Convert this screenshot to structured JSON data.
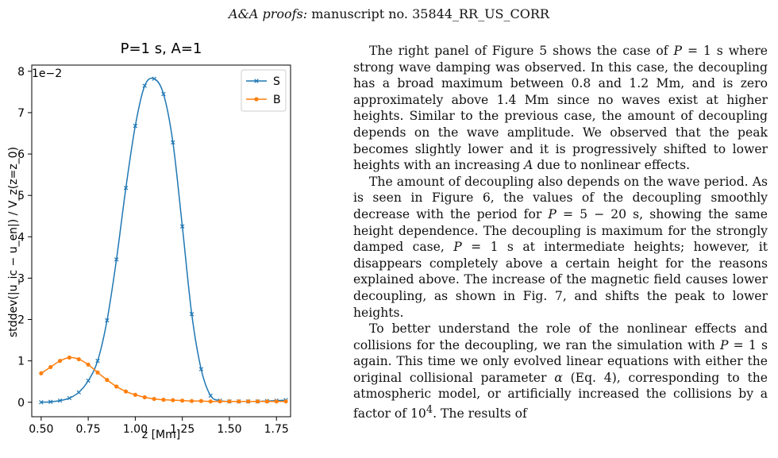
{
  "header": {
    "journal": "A&A proofs:",
    "manuscript": "manuscript no. 35844_RR_US_CORR"
  },
  "chart_data": {
    "type": "line",
    "title": "P=1 s, A=1",
    "xlabel": "z [Mm]",
    "ylabel": "stddev(|u_ic − u_en|) / V_z(z=z_0)",
    "y_multiplier_label": "1e−2",
    "xlim": [
      0.45,
      1.825
    ],
    "ylim": [
      -0.0035,
      0.0815
    ],
    "x_ticks": [
      "0.50",
      "0.75",
      "1.00",
      "1.25",
      "1.50",
      "1.75"
    ],
    "y_ticks": [
      "0",
      "1",
      "2",
      "3",
      "4",
      "5",
      "6",
      "7",
      "8"
    ],
    "legend_position": "top-right",
    "grid": false,
    "series": [
      {
        "name": "S",
        "color": "#1f77b4",
        "marker": "x",
        "x": [
          0.5,
          0.55,
          0.6,
          0.65,
          0.7,
          0.75,
          0.8,
          0.85,
          0.9,
          0.95,
          1.0,
          1.05,
          1.1,
          1.15,
          1.2,
          1.25,
          1.3,
          1.35,
          1.4,
          1.45,
          1.5,
          1.55,
          1.6,
          1.65,
          1.7,
          1.75,
          1.8
        ],
        "y": [
          0.0,
          0.0001,
          0.0004,
          0.001,
          0.0024,
          0.0052,
          0.01,
          0.0198,
          0.0345,
          0.0518,
          0.0668,
          0.0765,
          0.0782,
          0.0745,
          0.0628,
          0.0425,
          0.0213,
          0.008,
          0.0016,
          0.0004,
          0.0002,
          0.0002,
          0.0002,
          0.0002,
          0.0003,
          0.0004,
          0.0005
        ]
      },
      {
        "name": "B",
        "color": "#ff7f0e",
        "marker": "o",
        "x": [
          0.5,
          0.55,
          0.6,
          0.65,
          0.7,
          0.75,
          0.8,
          0.85,
          0.9,
          0.95,
          1.0,
          1.05,
          1.1,
          1.15,
          1.2,
          1.25,
          1.3,
          1.35,
          1.4,
          1.45,
          1.5,
          1.55,
          1.6,
          1.65,
          1.7,
          1.75,
          1.8
        ],
        "y": [
          0.007,
          0.0085,
          0.01,
          0.0108,
          0.0104,
          0.0091,
          0.0072,
          0.0054,
          0.0038,
          0.0026,
          0.0018,
          0.0012,
          0.0008,
          0.0006,
          0.0005,
          0.0004,
          0.0003,
          0.0003,
          0.0002,
          0.0002,
          0.0002,
          0.0002,
          0.0002,
          0.0002,
          0.0002,
          0.0002,
          0.0002
        ]
      }
    ]
  },
  "paragraphs": [
    "The right panel of Figure 5 shows the case of P = 1 s where strong wave damping was observed. In this case, the decoupling has a broad maximum between 0.8 and 1.2 Mm, and is zero approximately above 1.4 Mm since no waves exist at higher heights. Similar to the previous case, the amount of decoupling depends on the wave amplitude. We observed that the peak becomes slightly lower and it is progressively shifted to lower heights with an increasing A due to nonlinear effects.",
    "The amount of decoupling also depends on the wave period. As is seen in Figure 6, the values of the decoupling smoothly decrease with the period for P = 5 − 20 s, showing the same height dependence. The decoupling is maximum for the strongly damped case, P = 1 s at intermediate heights; however, it disappears completely above a certain height for the reasons explained above. The increase of the magnetic field causes lower decoupling, as shown in Fig. 7, and shifts the peak to lower heights.",
    "To better understand the role of the nonlinear effects and collisions for the decoupling, we ran the simulation with P = 1 s again. This time we only evolved linear equations with either the original collisional parameter α (Eq. 4), corresponding to the atmospheric model, or artificially increased the collisions by a factor of 10⁴. The results of"
  ]
}
